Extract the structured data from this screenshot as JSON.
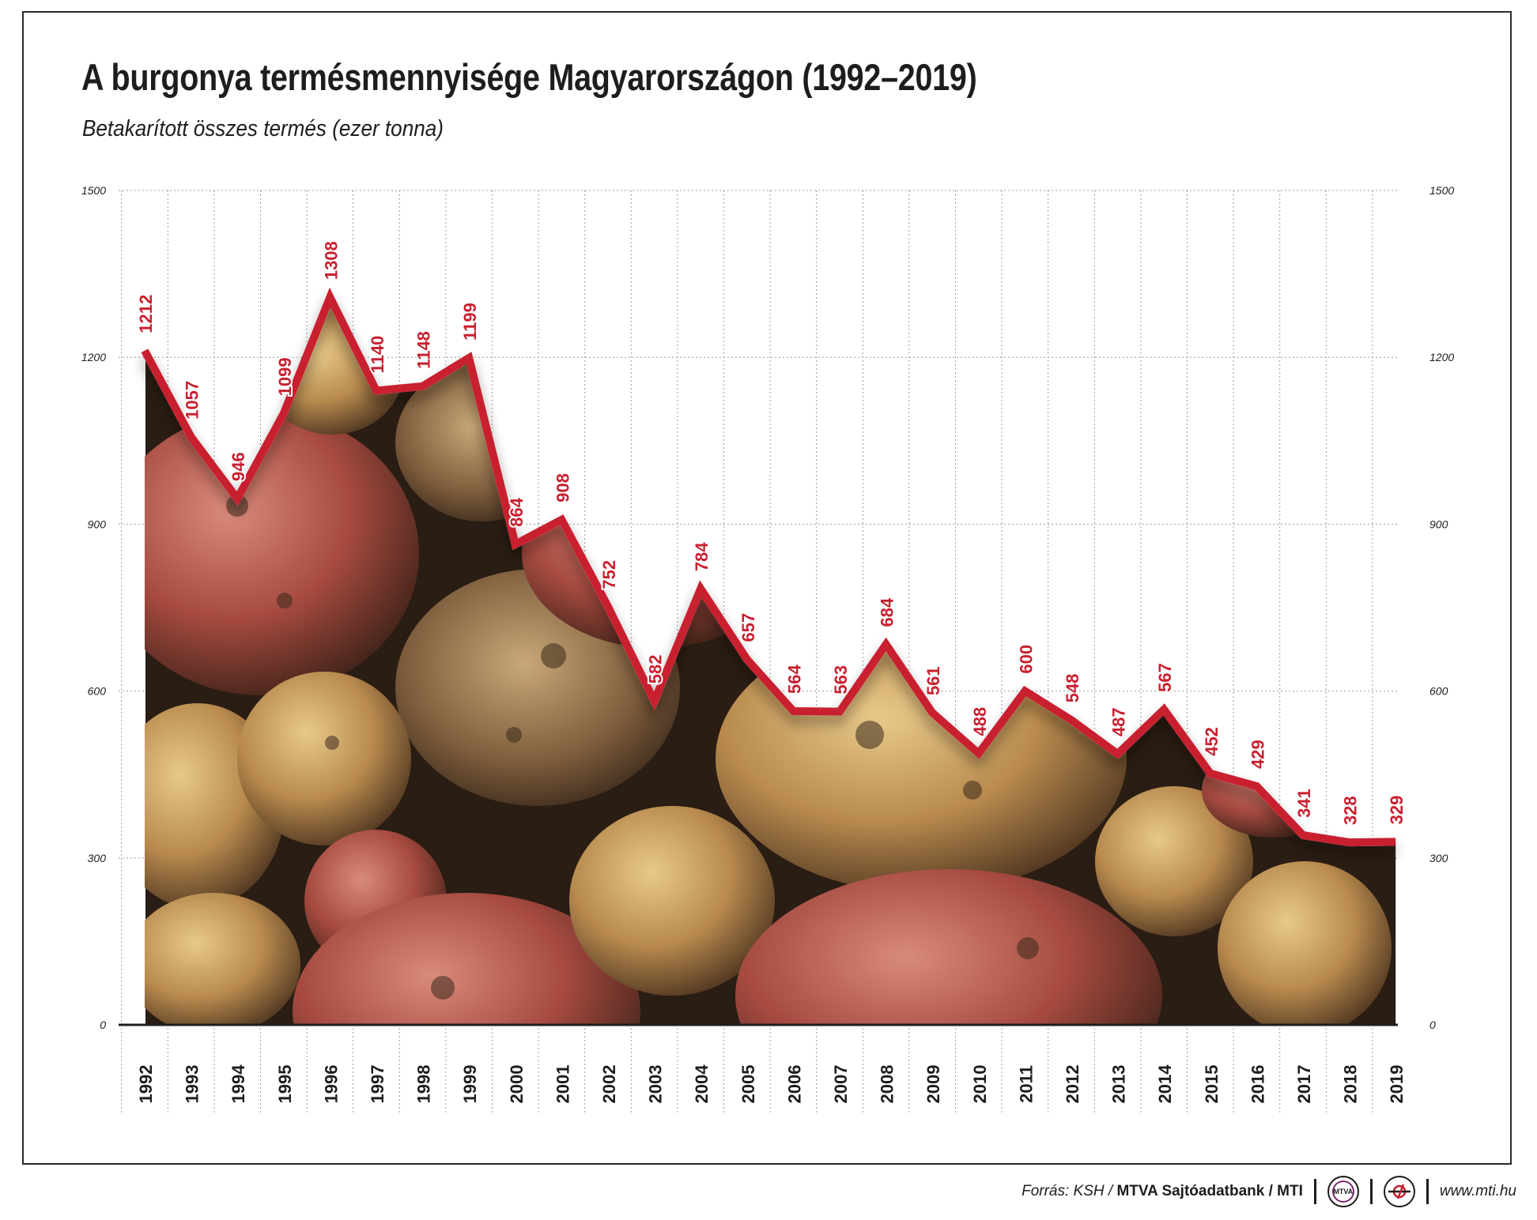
{
  "chart_data": {
    "type": "line",
    "title": "A burgonya termésmennyisége Magyarországon (1992–2019)",
    "subtitle": "Betakarított összes termés (ezer tonna)",
    "categories": [
      "1992",
      "1993",
      "1994",
      "1995",
      "1996",
      "1997",
      "1998",
      "1999",
      "2000",
      "2001",
      "2002",
      "2003",
      "2004",
      "2005",
      "2006",
      "2007",
      "2008",
      "2009",
      "2010",
      "2011",
      "2012",
      "2013",
      "2014",
      "2015",
      "2016",
      "2017",
      "2018",
      "2019"
    ],
    "values": [
      1212,
      1057,
      946,
      1099,
      1308,
      1140,
      1148,
      1199,
      864,
      908,
      752,
      582,
      784,
      657,
      564,
      563,
      684,
      561,
      488,
      600,
      548,
      487,
      567,
      452,
      429,
      341,
      328,
      329
    ],
    "ylim": [
      0,
      1500
    ],
    "yticks": [
      "0",
      "300",
      "600",
      "900",
      "1200",
      "1500"
    ],
    "grid": true,
    "line_color": "#c8202f",
    "label_color": "#c8202f",
    "background_image": "potatoes-photo"
  },
  "footer": {
    "source_prefix": "Forrás: KSH /",
    "source_bold": "MTVA Sajtóadatbank / MTI",
    "mtva_logo": "MTVA",
    "mti_logo_icon": "mti-logo-icon",
    "website": "www.mti.hu"
  }
}
